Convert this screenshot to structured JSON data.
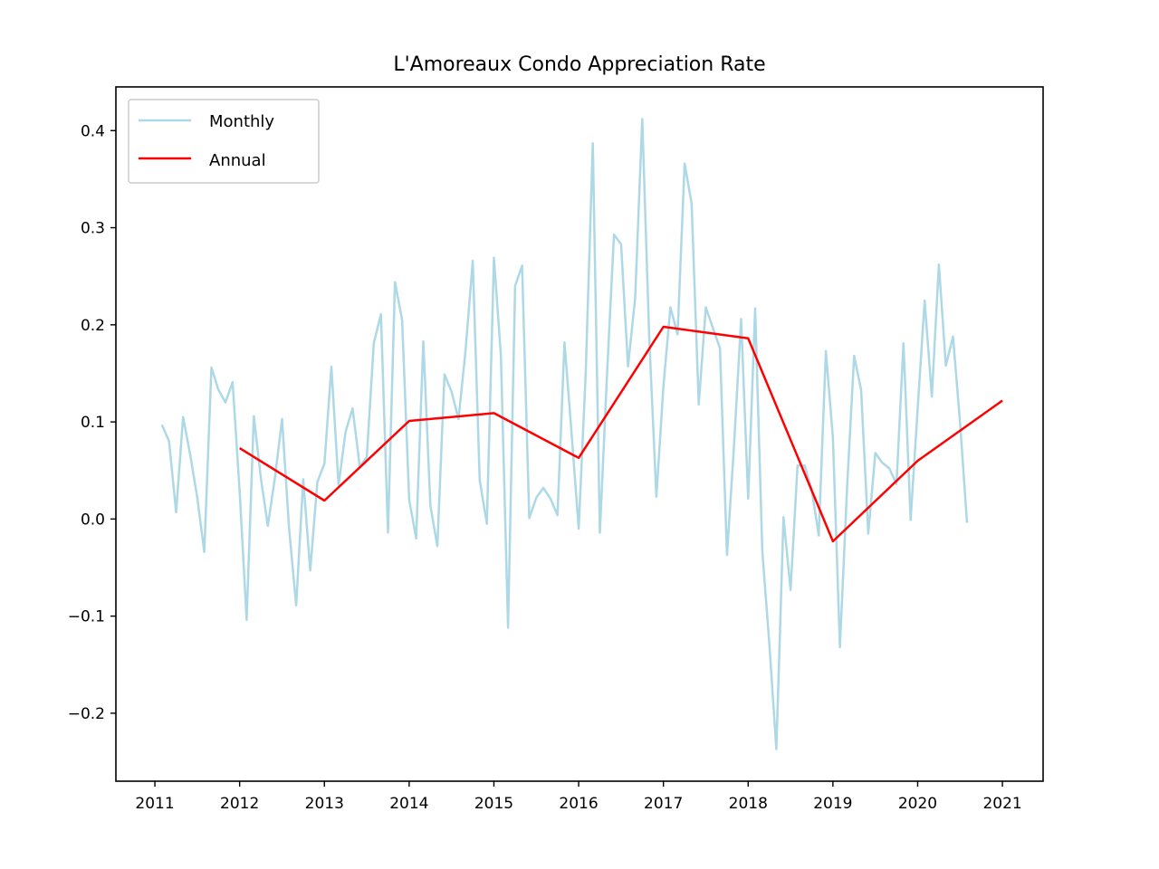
{
  "chart_data": {
    "type": "line",
    "title": "L'Amoreaux Condo Appreciation Rate",
    "xlabel": "",
    "ylabel": "",
    "xlim": [
      2010.54,
      2021.48
    ],
    "ylim": [
      -0.27,
      0.445
    ],
    "x_ticks": [
      2011,
      2012,
      2013,
      2014,
      2015,
      2016,
      2017,
      2018,
      2019,
      2020,
      2021
    ],
    "x_tick_labels": [
      "2011",
      "2012",
      "2013",
      "2014",
      "2015",
      "2016",
      "2017",
      "2018",
      "2019",
      "2020",
      "2021"
    ],
    "y_ticks": [
      -0.2,
      -0.1,
      0.0,
      0.1,
      0.2,
      0.3,
      0.4
    ],
    "y_tick_labels": [
      "−0.2",
      "−0.1",
      "0.0",
      "0.1",
      "0.2",
      "0.3",
      "0.4"
    ],
    "grid": false,
    "legend_position": "upper-left",
    "series": [
      {
        "name": "Monthly",
        "color": "#add8e6",
        "x": [
          2011.083,
          2011.167,
          2011.25,
          2011.333,
          2011.417,
          2011.5,
          2011.583,
          2011.667,
          2011.75,
          2011.833,
          2011.917,
          2012.0,
          2012.083,
          2012.167,
          2012.25,
          2012.333,
          2012.417,
          2012.5,
          2012.583,
          2012.667,
          2012.75,
          2012.833,
          2012.917,
          2013.0,
          2013.083,
          2013.167,
          2013.25,
          2013.333,
          2013.417,
          2013.5,
          2013.583,
          2013.667,
          2013.75,
          2013.833,
          2013.917,
          2014.0,
          2014.083,
          2014.167,
          2014.25,
          2014.333,
          2014.417,
          2014.5,
          2014.583,
          2014.667,
          2014.75,
          2014.833,
          2014.917,
          2015.0,
          2015.083,
          2015.167,
          2015.25,
          2015.333,
          2015.417,
          2015.5,
          2015.583,
          2015.667,
          2015.75,
          2015.833,
          2015.917,
          2016.0,
          2016.083,
          2016.167,
          2016.25,
          2016.333,
          2016.417,
          2016.5,
          2016.583,
          2016.667,
          2016.75,
          2016.833,
          2016.917,
          2017.0,
          2017.083,
          2017.167,
          2017.25,
          2017.333,
          2017.417,
          2017.5,
          2017.583,
          2017.667,
          2017.75,
          2017.833,
          2017.917,
          2018.0,
          2018.083,
          2018.167,
          2018.25,
          2018.333,
          2018.417,
          2018.5,
          2018.583,
          2018.667,
          2018.75,
          2018.833,
          2018.917,
          2019.0,
          2019.083,
          2019.167,
          2019.25,
          2019.333,
          2019.417,
          2019.5,
          2019.583,
          2019.667,
          2019.75,
          2019.833,
          2019.917,
          2020.0,
          2020.083,
          2020.167,
          2020.25,
          2020.333,
          2020.417,
          2020.5,
          2020.583
        ],
        "values": [
          0.097,
          0.08,
          0.007,
          0.105,
          0.066,
          0.022,
          -0.034,
          0.156,
          0.133,
          0.12,
          0.141,
          0.028,
          -0.104,
          0.106,
          0.042,
          -0.007,
          0.043,
          0.103,
          -0.009,
          -0.089,
          0.041,
          -0.053,
          0.038,
          0.057,
          0.157,
          0.035,
          0.09,
          0.114,
          0.054,
          0.064,
          0.181,
          0.211,
          -0.014,
          0.244,
          0.205,
          0.02,
          -0.02,
          0.183,
          0.014,
          -0.028,
          0.149,
          0.131,
          0.103,
          0.175,
          0.266,
          0.04,
          -0.005,
          0.269,
          0.168,
          -0.112,
          0.24,
          0.261,
          0.001,
          0.022,
          0.032,
          0.021,
          0.004,
          0.182,
          0.088,
          -0.01,
          0.149,
          0.387,
          -0.014,
          0.145,
          0.293,
          0.283,
          0.157,
          0.228,
          0.412,
          0.187,
          0.023,
          0.137,
          0.218,
          0.19,
          0.366,
          0.325,
          0.118,
          0.218,
          0.197,
          0.176,
          -0.037,
          0.075,
          0.206,
          0.021,
          0.217,
          -0.033,
          -0.129,
          -0.237,
          0.002,
          -0.073,
          0.055,
          0.055,
          0.03,
          -0.017,
          0.173,
          0.083,
          -0.132,
          0.032,
          0.168,
          0.133,
          -0.015,
          0.068,
          0.058,
          0.052,
          0.036,
          0.181,
          -0.001,
          0.114,
          0.225,
          0.126,
          0.262,
          0.158,
          0.188,
          0.099,
          -0.004
        ]
      },
      {
        "name": "Annual",
        "color": "#ff0000",
        "x": [
          2012,
          2013,
          2014,
          2015,
          2016,
          2017,
          2018,
          2019,
          2020,
          2021
        ],
        "values": [
          0.073,
          0.019,
          0.101,
          0.109,
          0.063,
          0.198,
          0.186,
          -0.023,
          0.06,
          0.122
        ]
      }
    ]
  }
}
